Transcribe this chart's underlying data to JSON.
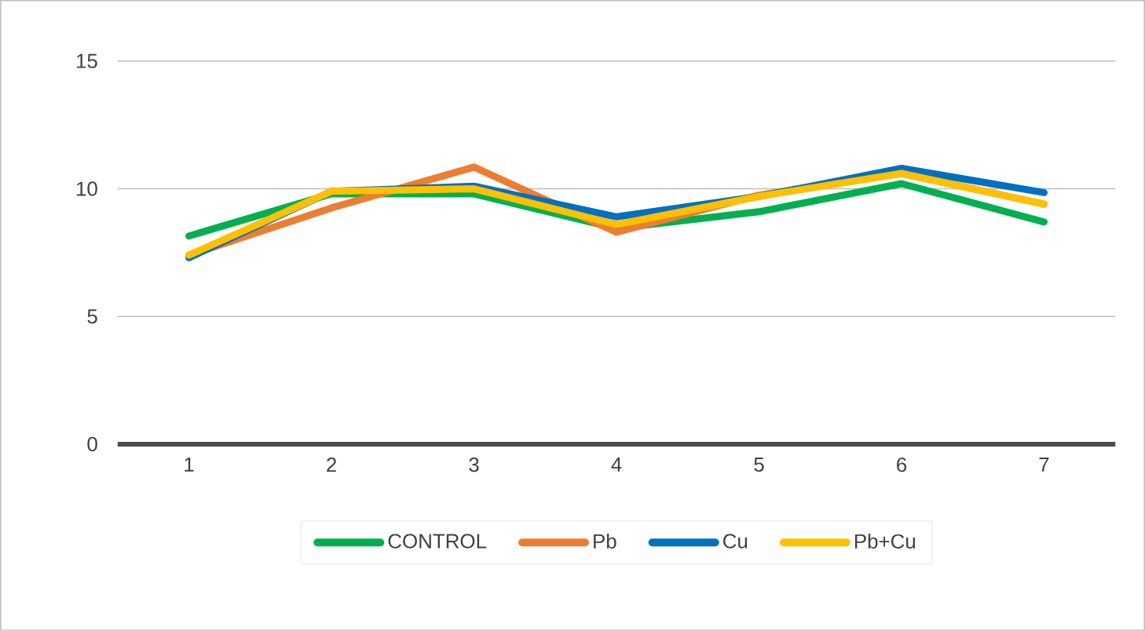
{
  "chart_data": {
    "type": "line",
    "categories": [
      "1",
      "2",
      "3",
      "4",
      "5",
      "6",
      "7"
    ],
    "series": [
      {
        "name": "CONTROL",
        "color": "#00b050",
        "values": [
          8.15,
          9.8,
          9.8,
          8.45,
          9.1,
          10.2,
          8.7
        ]
      },
      {
        "name": "Pb",
        "color": "#ed7d31",
        "values": [
          7.4,
          9.25,
          10.85,
          8.3,
          9.75,
          10.6,
          9.4
        ]
      },
      {
        "name": "Cu",
        "color": "#0070c0",
        "values": [
          7.3,
          9.9,
          10.1,
          8.9,
          9.7,
          10.8,
          9.85
        ]
      },
      {
        "name": "Pb+Cu",
        "color": "#ffc000",
        "values": [
          7.4,
          9.9,
          10.0,
          8.6,
          9.7,
          10.6,
          9.4
        ]
      }
    ],
    "ylim": [
      0,
      15
    ],
    "yticks": [
      0,
      5,
      10,
      15
    ],
    "grid": "y",
    "legend": "bottom",
    "marker": "none",
    "line_style": "solid"
  }
}
